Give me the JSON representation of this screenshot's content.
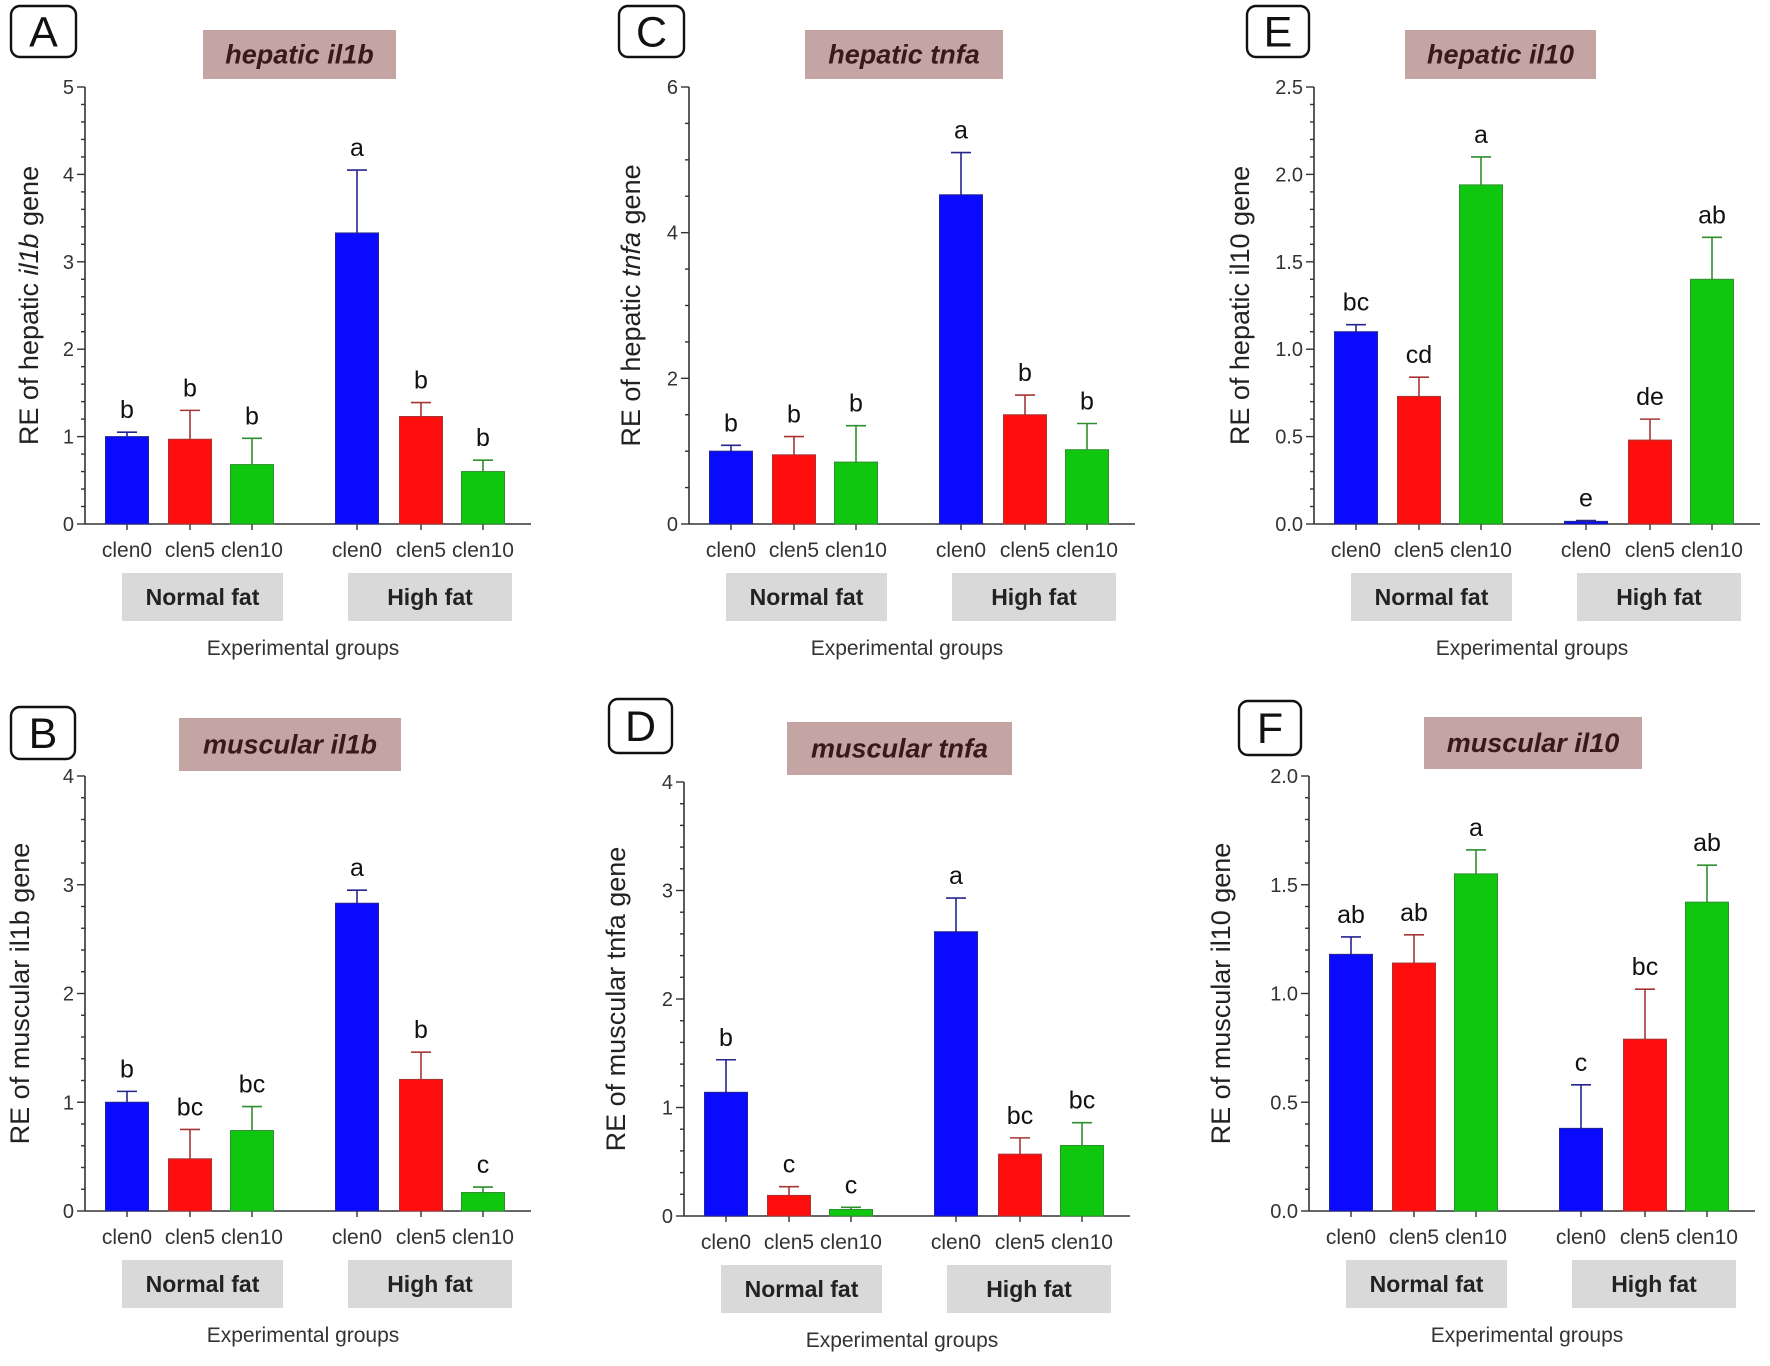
{
  "colors": {
    "clen0": "#0a0aff",
    "clen5": "#ff0d0d",
    "clen10": "#10c710",
    "clen0_error": "#25258f",
    "clen5_error": "#a63636",
    "clen10_error": "#2f8f2f",
    "title_box": "#c5a5a3",
    "group_box": "#d9d9d9"
  },
  "chart_data": [
    {
      "panel_label": "A",
      "type": "bar",
      "title": "hepatic il1b",
      "ylabel": [
        {
          "text": "RE of hepatic "
        },
        {
          "text": "il1b",
          "italic": true
        },
        {
          "text": " gene"
        }
      ],
      "xlabel": "Experimental groups",
      "groups": [
        "Normal fat",
        "High fat"
      ],
      "categories": [
        "clen0",
        "clen5",
        "clen10",
        "clen0",
        "clen5",
        "clen10"
      ],
      "values": [
        1.0,
        0.97,
        0.68,
        3.33,
        1.23,
        0.6
      ],
      "errors": [
        0.05,
        0.33,
        0.3,
        0.72,
        0.16,
        0.13
      ],
      "letters": [
        "b",
        "b",
        "b",
        "a",
        "b",
        "b"
      ],
      "ylim": [
        0,
        5
      ],
      "yticks": [
        0,
        1,
        2,
        3,
        4,
        5
      ],
      "ytick_labels": [
        "0",
        "1",
        "2",
        "3",
        "4",
        "5"
      ]
    },
    {
      "panel_label": "C",
      "type": "bar",
      "title": "hepatic tnfa",
      "ylabel": [
        {
          "text": "RE of hepatic "
        },
        {
          "text": "tnfa",
          "italic": true
        },
        {
          "text": " gene"
        }
      ],
      "xlabel": "Experimental groups",
      "groups": [
        "Normal fat",
        "High fat"
      ],
      "categories": [
        "clen0",
        "clen5",
        "clen10",
        "clen0",
        "clen5",
        "clen10"
      ],
      "values": [
        1.0,
        0.95,
        0.85,
        4.52,
        1.5,
        1.02
      ],
      "errors": [
        0.08,
        0.25,
        0.5,
        0.58,
        0.27,
        0.36
      ],
      "letters": [
        "b",
        "b",
        "b",
        "a",
        "b",
        "b"
      ],
      "ylim": [
        0,
        6
      ],
      "yticks": [
        0,
        2,
        4,
        6
      ],
      "ytick_labels": [
        "0",
        "2",
        "4",
        "6"
      ]
    },
    {
      "panel_label": "E",
      "type": "bar",
      "title": "hepatic il10",
      "ylabel": [
        {
          "text": "RE of hepatic il10 gene"
        }
      ],
      "xlabel": "Experimental groups",
      "groups": [
        "Normal fat",
        "High fat"
      ],
      "categories": [
        "clen0",
        "clen5",
        "clen10",
        "clen0",
        "clen5",
        "clen10"
      ],
      "values": [
        1.1,
        0.73,
        1.94,
        0.015,
        0.48,
        1.4
      ],
      "errors": [
        0.04,
        0.11,
        0.16,
        0.005,
        0.12,
        0.24
      ],
      "letters": [
        "bc",
        "cd",
        "a",
        "e",
        "de",
        "ab"
      ],
      "ylim": [
        0,
        2.5
      ],
      "yticks": [
        0,
        0.5,
        1.0,
        1.5,
        2.0,
        2.5
      ],
      "ytick_labels": [
        "0.0",
        "0.5",
        "1.0",
        "1.5",
        "2.0",
        "2.5"
      ]
    },
    {
      "panel_label": "B",
      "type": "bar",
      "title": "muscular il1b",
      "ylabel": [
        {
          "text": "RE of muscular il1b gene"
        }
      ],
      "xlabel": "Experimental groups",
      "groups": [
        "Normal fat",
        "High fat"
      ],
      "categories": [
        "clen0",
        "clen5",
        "clen10",
        "clen0",
        "clen5",
        "clen10"
      ],
      "values": [
        1.0,
        0.48,
        0.74,
        2.83,
        1.21,
        0.17
      ],
      "errors": [
        0.1,
        0.27,
        0.22,
        0.12,
        0.25,
        0.05
      ],
      "letters": [
        "b",
        "bc",
        "bc",
        "a",
        "b",
        "c"
      ],
      "ylim": [
        0,
        4
      ],
      "yticks": [
        0,
        1,
        2,
        3,
        4
      ],
      "ytick_labels": [
        "0",
        "1",
        "2",
        "3",
        "4"
      ]
    },
    {
      "panel_label": "D",
      "type": "bar",
      "title": "muscular tnfa",
      "ylabel": [
        {
          "text": "RE of muscular tnfa gene"
        }
      ],
      "xlabel": "Experimental groups",
      "groups": [
        "Normal fat",
        "High fat"
      ],
      "categories": [
        "clen0",
        "clen5",
        "clen10",
        "clen0",
        "clen5",
        "clen10"
      ],
      "values": [
        1.14,
        0.19,
        0.06,
        2.62,
        0.57,
        0.65
      ],
      "errors": [
        0.3,
        0.08,
        0.02,
        0.31,
        0.15,
        0.21
      ],
      "letters": [
        "b",
        "c",
        "c",
        "a",
        "bc",
        "bc"
      ],
      "ylim": [
        0,
        4
      ],
      "yticks": [
        0,
        1,
        2,
        3,
        4
      ],
      "ytick_labels": [
        "0",
        "1",
        "2",
        "3",
        "4"
      ]
    },
    {
      "panel_label": "F",
      "type": "bar",
      "title": "muscular il10",
      "ylabel": [
        {
          "text": "RE of muscular il10 gene"
        }
      ],
      "xlabel": "Experimental groups",
      "groups": [
        "Normal fat",
        "High fat"
      ],
      "categories": [
        "clen0",
        "clen5",
        "clen10",
        "clen0",
        "clen5",
        "clen10"
      ],
      "values": [
        1.18,
        1.14,
        1.55,
        0.38,
        0.79,
        1.42
      ],
      "errors": [
        0.08,
        0.13,
        0.11,
        0.2,
        0.23,
        0.17
      ],
      "letters": [
        "ab",
        "ab",
        "a",
        "c",
        "bc",
        "ab"
      ],
      "ylim": [
        0,
        2
      ],
      "yticks": [
        0,
        0.5,
        1.0,
        1.5,
        2.0
      ],
      "ytick_labels": [
        "0.0",
        "0.5",
        "1.0",
        "1.5",
        "2.0"
      ]
    }
  ]
}
